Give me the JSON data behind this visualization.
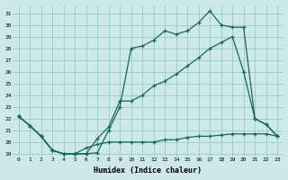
{
  "xlabel": "Humidex (Indice chaleur)",
  "bg_color": "#cde8e8",
  "grid_color": "#9ecece",
  "line_color": "#1a6655",
  "xlim": [
    -0.5,
    23.5
  ],
  "ylim_min": 18.8,
  "ylim_max": 31.7,
  "yticks": [
    19,
    20,
    21,
    22,
    23,
    24,
    25,
    26,
    27,
    28,
    29,
    30,
    31
  ],
  "xticks": [
    0,
    1,
    2,
    3,
    4,
    5,
    6,
    7,
    8,
    9,
    10,
    11,
    12,
    13,
    14,
    15,
    16,
    17,
    18,
    19,
    20,
    21,
    22,
    23
  ],
  "line1_x": [
    0,
    1,
    2,
    3,
    4,
    5,
    6,
    7,
    8,
    9,
    10,
    11,
    12,
    13,
    14,
    15,
    16,
    17,
    18,
    19,
    20,
    21,
    22,
    23
  ],
  "line1_y": [
    22.2,
    21.4,
    20.5,
    19.3,
    19.0,
    19.0,
    19.0,
    19.1,
    21.0,
    23.0,
    28.0,
    28.2,
    28.7,
    29.5,
    29.2,
    29.5,
    30.2,
    31.2,
    30.0,
    29.8,
    29.8,
    22.0,
    21.5,
    20.5
  ],
  "line2_x": [
    0,
    1,
    2,
    3,
    4,
    5,
    6,
    7,
    8,
    9,
    10,
    11,
    12,
    13,
    14,
    15,
    16,
    17,
    18,
    19,
    20,
    21,
    22,
    23
  ],
  "line2_y": [
    22.2,
    21.4,
    20.5,
    19.3,
    19.0,
    19.0,
    19.0,
    20.3,
    21.3,
    23.5,
    23.5,
    24.0,
    24.8,
    25.2,
    25.8,
    26.5,
    27.2,
    28.0,
    28.5,
    29.0,
    26.0,
    22.0,
    21.5,
    20.5
  ],
  "line3_x": [
    0,
    1,
    2,
    3,
    4,
    5,
    6,
    7,
    8,
    9,
    10,
    11,
    12,
    13,
    14,
    15,
    16,
    17,
    18,
    19,
    20,
    21,
    22,
    23
  ],
  "line3_y": [
    22.2,
    21.4,
    20.5,
    19.3,
    19.0,
    19.0,
    19.5,
    19.8,
    20.0,
    20.0,
    20.0,
    20.0,
    20.0,
    20.2,
    20.2,
    20.4,
    20.5,
    20.5,
    20.6,
    20.7,
    20.7,
    20.7,
    20.7,
    20.5
  ]
}
